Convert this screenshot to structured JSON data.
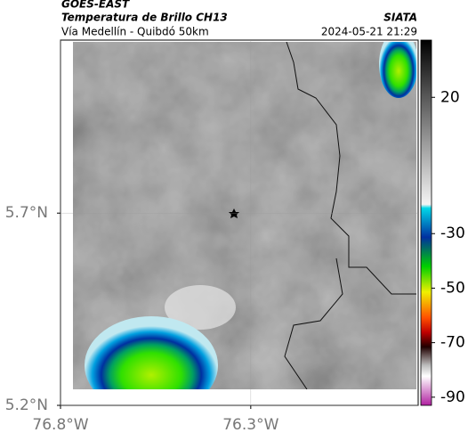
{
  "header": {
    "source": "GOES-EAST",
    "title": "Temperatura de Brillo CH13",
    "subtitle": "Vía Medellín - Quibdó 50km",
    "agency": "SIATA",
    "datetime": "2024-05-21 21:29"
  },
  "map": {
    "xlim": [
      -76.8,
      -75.86
    ],
    "ylim": [
      5.2,
      6.15
    ],
    "xticks": [
      {
        "value": -76.8,
        "label": "76.8°W"
      },
      {
        "value": -76.3,
        "label": "76.3°W"
      }
    ],
    "yticks": [
      {
        "value": 5.2,
        "label": "5.2°N"
      },
      {
        "value": 5.7,
        "label": "5.7°N"
      }
    ]
  },
  "colorbar": {
    "lim": [
      -93,
      41
    ],
    "ticks": [
      20,
      -30,
      -50,
      -70,
      -90
    ]
  }
}
